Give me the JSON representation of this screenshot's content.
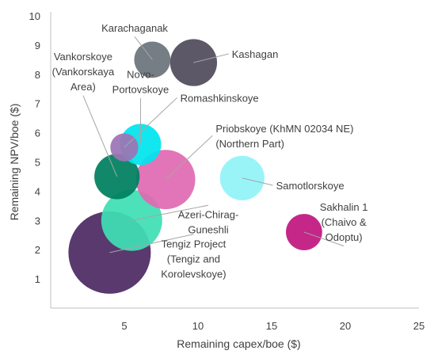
{
  "chart_data": {
    "type": "scatter",
    "title": "",
    "xlabel": "Remaining capex/boe ($)",
    "ylabel": "Remaining NPV/boe ($)",
    "xlim": [
      0,
      25
    ],
    "ylim": [
      0,
      10
    ],
    "x_ticks": [
      "5",
      "10",
      "15",
      "20",
      "25"
    ],
    "y_ticks": [
      "1",
      "2",
      "3",
      "4",
      "5",
      "6",
      "7",
      "8",
      "9",
      "10"
    ],
    "grid": false,
    "points": [
      {
        "name": "Tengiz Project (Tengiz and Korolevskoye)",
        "lines": [
          "Tengiz Project",
          "(Tengiz and",
          "Korolevskoye)"
        ],
        "x": 4.0,
        "y": 1.9,
        "size": 1.0,
        "color": "#4e2a63",
        "label_x": 9.7,
        "label_y": 1.7,
        "anchor": "x"
      },
      {
        "name": "Azeri-Chirag-Guneshli",
        "lines": [
          "Azeri-Chirag-",
          "Guneshli"
        ],
        "x": 5.5,
        "y": 3.0,
        "size": 0.74,
        "color": "#3fdfb5",
        "label_x": 10.7,
        "label_y": 2.95,
        "anchor": "x"
      },
      {
        "name": "Priobskoye (KhMN 02034 NE) (Northern Part)",
        "lines": [
          "Priobskoye (KhMN 02034 NE)",
          "(Northern Part)"
        ],
        "x": 7.8,
        "y": 4.4,
        "size": 0.72,
        "color": "#e06bb1",
        "label_x": 11.2,
        "label_y": 5.9,
        "anchor": "start"
      },
      {
        "name": "Vankorskoye (Vankorskaya Area)",
        "lines": [
          "Vankorskoye",
          "(Vankorskaya",
          "Area)"
        ],
        "x": 4.5,
        "y": 4.5,
        "size": 0.55,
        "color": "#007f5f",
        "label_x": 2.2,
        "label_y": 8.1,
        "anchor": "x"
      },
      {
        "name": "Novo-Portovskoye",
        "lines": [
          "Novo-",
          "Portovskoye"
        ],
        "x": 6.1,
        "y": 5.6,
        "size": 0.5,
        "color": "#00e5ef",
        "label_x": 6.1,
        "label_y": 7.75,
        "anchor": "x"
      },
      {
        "name": "Romashkinskoye",
        "lines": [
          "Romashkinskoye"
        ],
        "x": 5.0,
        "y": 5.5,
        "size": 0.34,
        "color": "#9c74b5",
        "label_x": 8.8,
        "label_y": 7.2,
        "anchor": "start"
      },
      {
        "name": "Samotlorskoye",
        "lines": [
          "Samotlorskoye"
        ],
        "x": 13.0,
        "y": 4.45,
        "size": 0.54,
        "color": "#91f3f7",
        "label_x": 15.3,
        "label_y": 4.2,
        "anchor": "start"
      },
      {
        "name": "Sakhalin 1 (Chaivo & Odoptu)",
        "lines": [
          "Sakhalin 1",
          "(Chaivo &",
          "Odoptu)"
        ],
        "x": 17.2,
        "y": 2.6,
        "size": 0.44,
        "color": "#c0177f",
        "label_x": 19.9,
        "label_y": 2.95,
        "anchor": "x"
      },
      {
        "name": "Kashagan",
        "lines": [
          "Kashagan"
        ],
        "x": 9.7,
        "y": 8.4,
        "size": 0.57,
        "color": "#514b5d",
        "label_x": 12.3,
        "label_y": 8.7,
        "anchor": "start"
      },
      {
        "name": "Karachaganak",
        "lines": [
          "Karachaganak"
        ],
        "x": 6.9,
        "y": 8.5,
        "size": 0.44,
        "color": "#6b747c",
        "label_x": 5.7,
        "label_y": 9.6,
        "anchor": "x"
      }
    ]
  }
}
